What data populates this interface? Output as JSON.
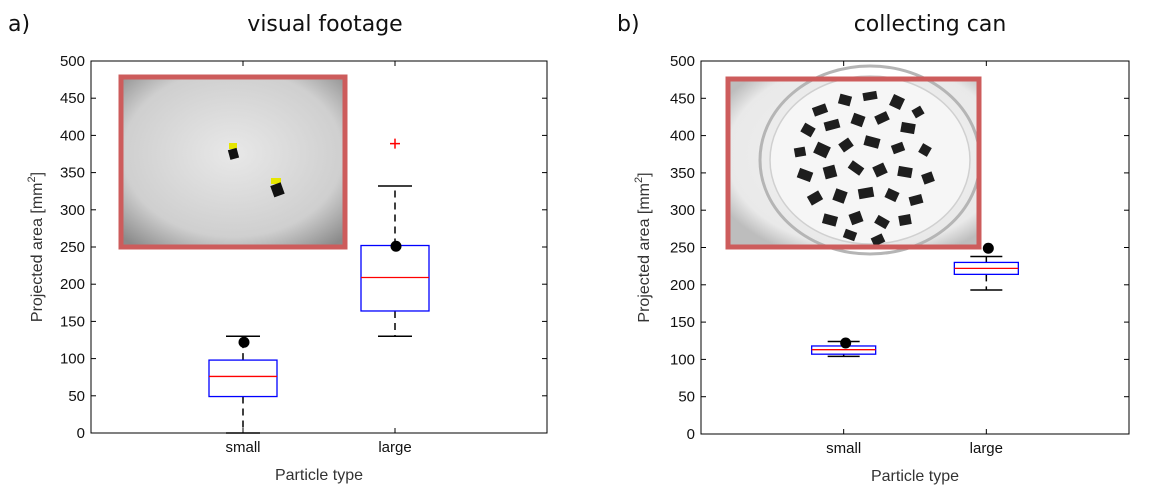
{
  "figure": {
    "panels": [
      {
        "tag": "a)",
        "title": "visual footage"
      },
      {
        "tag": "b)",
        "title": "collecting can"
      }
    ]
  },
  "chart_data": [
    {
      "type": "box",
      "title": "visual footage",
      "xlabel": "Particle type",
      "ylabel": "Projected area [mm",
      "ylabel_sup": "2",
      "ylabel_end": "]",
      "ylim": [
        0,
        500
      ],
      "yticks": [
        0,
        50,
        100,
        150,
        200,
        250,
        300,
        350,
        400,
        450,
        500
      ],
      "categories": [
        "small",
        "large"
      ],
      "boxes": [
        {
          "category": "small",
          "whisker_low": 0,
          "q1": 49,
          "median": 76,
          "q3": 98,
          "whisker_high": 130,
          "outliers": [],
          "marker": 122
        },
        {
          "category": "large",
          "whisker_low": 130,
          "q1": 164,
          "median": 209,
          "q3": 252,
          "whisker_high": 332,
          "outliers": [
            389
          ],
          "marker": 251
        }
      ],
      "colors": {
        "box": "#0000ff",
        "median": "#ff0000",
        "whisker": "#000000",
        "outlier": "#ff0000",
        "marker": "#000000"
      },
      "inset": {
        "type": "photo",
        "content": "dark particles on light gray background",
        "frame_color": "#cd5c5c"
      }
    },
    {
      "type": "box",
      "title": "collecting can",
      "xlabel": "Particle type",
      "ylabel": "Projected area [mm",
      "ylabel_sup": "2",
      "ylabel_end": "]",
      "ylim": [
        0,
        500
      ],
      "yticks": [
        0,
        50,
        100,
        150,
        200,
        250,
        300,
        350,
        400,
        450,
        500
      ],
      "categories": [
        "small",
        "large"
      ],
      "boxes": [
        {
          "category": "small",
          "whisker_low": 104,
          "q1": 107,
          "median": 113,
          "q3": 118,
          "whisker_high": 124,
          "outliers": [],
          "marker": 122
        },
        {
          "category": "large",
          "whisker_low": 193,
          "q1": 214,
          "median": 222,
          "q3": 230,
          "whisker_high": 238,
          "outliers": [],
          "marker": 249
        }
      ],
      "colors": {
        "box": "#0000ff",
        "median": "#ff0000",
        "whisker": "#000000",
        "outlier": "#ff0000",
        "marker": "#000000"
      },
      "inset": {
        "type": "photo",
        "content": "dark particles in a glass dish on white",
        "frame_color": "#cd5c5c"
      }
    }
  ]
}
